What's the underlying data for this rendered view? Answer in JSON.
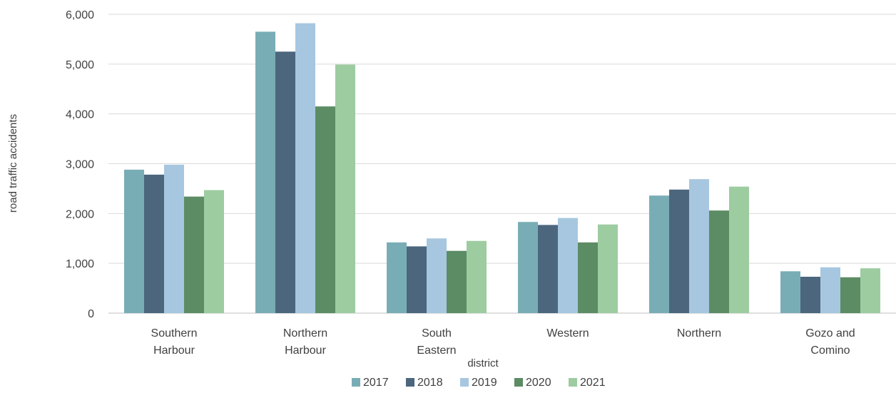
{
  "chart_data": {
    "type": "bar",
    "title": "",
    "xlabel": "district",
    "ylabel": "road traffic accidents",
    "ylim": [
      0,
      6000
    ],
    "yticks": [
      "0",
      "1,000",
      "2,000",
      "3,000",
      "4,000",
      "5,000",
      "6,000"
    ],
    "grid": true,
    "legend_position": "bottom",
    "categories": [
      [
        "Southern",
        "Harbour"
      ],
      [
        "Northern",
        "Harbour"
      ],
      [
        "South",
        "Eastern"
      ],
      [
        "Western"
      ],
      [
        "Northern"
      ],
      [
        "Gozo and",
        "Comino"
      ]
    ],
    "series": [
      {
        "name": "2017",
        "color": "#79adb6",
        "values": [
          2880,
          5650,
          1420,
          1830,
          2360,
          840
        ]
      },
      {
        "name": "2018",
        "color": "#4b667d",
        "values": [
          2780,
          5250,
          1340,
          1770,
          2480,
          730
        ]
      },
      {
        "name": "2019",
        "color": "#a7c7e0",
        "values": [
          2980,
          5820,
          1500,
          1910,
          2690,
          920
        ]
      },
      {
        "name": "2020",
        "color": "#5c8c64",
        "values": [
          2340,
          4150,
          1250,
          1420,
          2060,
          720
        ]
      },
      {
        "name": "2021",
        "color": "#9dcca1",
        "values": [
          2470,
          4990,
          1450,
          1780,
          2540,
          900
        ]
      }
    ]
  }
}
